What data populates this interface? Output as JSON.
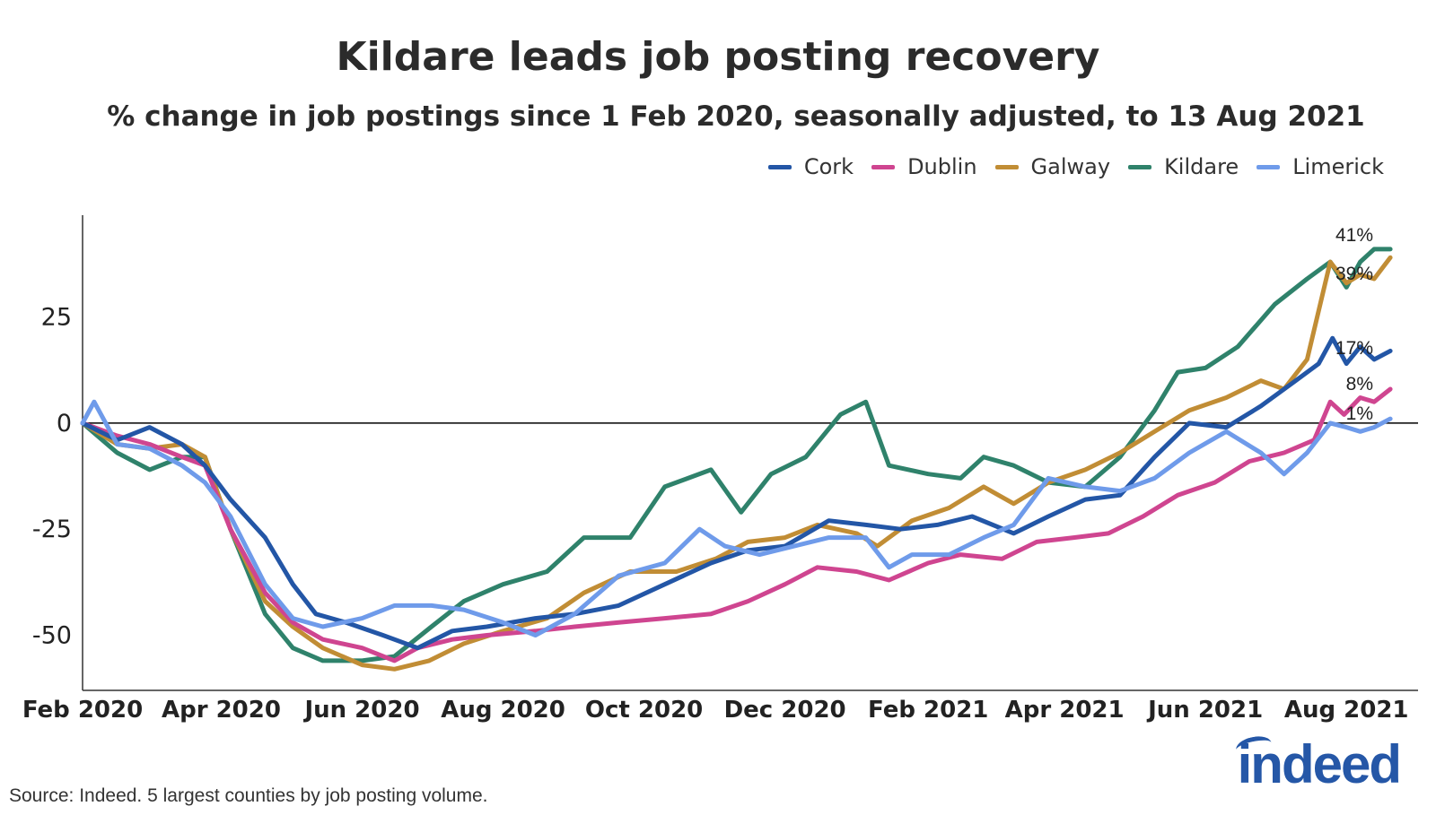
{
  "header": {
    "title": "Kildare leads job posting recovery",
    "subtitle": "% change in job postings since 1 Feb 2020, seasonally adjusted, to 13 Aug 2021"
  },
  "footer": {
    "source": "Source: Indeed. 5 largest counties by job posting volume.",
    "logo_text": "indeed"
  },
  "colors": {
    "Cork": "#2356a6",
    "Dublin": "#cf4590",
    "Galway": "#c18d35",
    "Kildare": "#2f826b",
    "Limerick": "#6f9bea"
  },
  "chart_data": {
    "type": "line",
    "title": "Kildare leads job posting recovery",
    "subtitle": "% change in job postings since 1 Feb 2020, seasonally adjusted, to 13 Aug 2021",
    "xlabel": "",
    "ylabel": "",
    "ylim": [
      -63,
      49
    ],
    "xlim": [
      "2020-02-01",
      "2021-09-01"
    ],
    "y_ticks": [
      25,
      0,
      -25,
      -50
    ],
    "y_tick_labels": [
      "25",
      "0",
      "-25",
      "-50"
    ],
    "x_ticks": [
      "2020-02-01",
      "2020-04-01",
      "2020-06-01",
      "2020-08-01",
      "2020-10-01",
      "2020-12-01",
      "2021-02-01",
      "2021-04-01",
      "2021-06-01",
      "2021-08-01"
    ],
    "x_tick_labels": [
      "Feb 2020",
      "Apr 2020",
      "Jun 2020",
      "Aug 2020",
      "Oct 2020",
      "Dec 2020",
      "Feb 2021",
      "Apr 2021",
      "Jun 2021",
      "Aug 2021"
    ],
    "zero_line": true,
    "grid": false,
    "legend_position": "top-right",
    "series": [
      {
        "name": "Cork",
        "end_label": "17%",
        "points": [
          [
            "2020-02-01",
            0
          ],
          [
            "2020-02-16",
            -4
          ],
          [
            "2020-03-01",
            -1
          ],
          [
            "2020-03-15",
            -5
          ],
          [
            "2020-03-25",
            -10
          ],
          [
            "2020-04-05",
            -18
          ],
          [
            "2020-04-20",
            -27
          ],
          [
            "2020-05-02",
            -38
          ],
          [
            "2020-05-12",
            -45
          ],
          [
            "2020-05-25",
            -47
          ],
          [
            "2020-06-10",
            -50
          ],
          [
            "2020-06-25",
            -53
          ],
          [
            "2020-07-10",
            -49
          ],
          [
            "2020-07-25",
            -48
          ],
          [
            "2020-08-15",
            -46
          ],
          [
            "2020-09-01",
            -45
          ],
          [
            "2020-09-20",
            -43
          ],
          [
            "2020-10-10",
            -38
          ],
          [
            "2020-10-30",
            -33
          ],
          [
            "2020-11-15",
            -30
          ],
          [
            "2020-12-01",
            -29
          ],
          [
            "2020-12-20",
            -23
          ],
          [
            "2021-01-05",
            -24
          ],
          [
            "2021-01-20",
            -25
          ],
          [
            "2021-02-05",
            -24
          ],
          [
            "2021-02-20",
            -22
          ],
          [
            "2021-03-10",
            -26
          ],
          [
            "2021-03-25",
            -22
          ],
          [
            "2021-04-10",
            -18
          ],
          [
            "2021-04-25",
            -17
          ],
          [
            "2021-05-10",
            -8
          ],
          [
            "2021-05-25",
            0
          ],
          [
            "2021-06-10",
            -1
          ],
          [
            "2021-06-25",
            4
          ],
          [
            "2021-07-10",
            10
          ],
          [
            "2021-07-20",
            14
          ],
          [
            "2021-07-26",
            20
          ],
          [
            "2021-08-01",
            14
          ],
          [
            "2021-08-07",
            18
          ],
          [
            "2021-08-13",
            15
          ],
          [
            "2021-08-20",
            17
          ]
        ]
      },
      {
        "name": "Dublin",
        "end_label": "8%",
        "points": [
          [
            "2020-02-01",
            0
          ],
          [
            "2020-02-16",
            -3
          ],
          [
            "2020-03-01",
            -5
          ],
          [
            "2020-03-15",
            -8
          ],
          [
            "2020-03-25",
            -10
          ],
          [
            "2020-04-05",
            -25
          ],
          [
            "2020-04-20",
            -40
          ],
          [
            "2020-05-02",
            -47
          ],
          [
            "2020-05-15",
            -51
          ],
          [
            "2020-06-01",
            -53
          ],
          [
            "2020-06-15",
            -56
          ],
          [
            "2020-06-25",
            -53
          ],
          [
            "2020-07-10",
            -51
          ],
          [
            "2020-07-25",
            -50
          ],
          [
            "2020-08-15",
            -49
          ],
          [
            "2020-09-01",
            -48
          ],
          [
            "2020-09-20",
            -47
          ],
          [
            "2020-10-10",
            -46
          ],
          [
            "2020-10-30",
            -45
          ],
          [
            "2020-11-15",
            -42
          ],
          [
            "2020-12-01",
            -38
          ],
          [
            "2020-12-15",
            -34
          ],
          [
            "2021-01-01",
            -35
          ],
          [
            "2021-01-15",
            -37
          ],
          [
            "2021-02-01",
            -33
          ],
          [
            "2021-02-15",
            -31
          ],
          [
            "2021-03-05",
            -32
          ],
          [
            "2021-03-20",
            -28
          ],
          [
            "2021-04-05",
            -27
          ],
          [
            "2021-04-20",
            -26
          ],
          [
            "2021-05-05",
            -22
          ],
          [
            "2021-05-20",
            -17
          ],
          [
            "2021-06-05",
            -14
          ],
          [
            "2021-06-20",
            -9
          ],
          [
            "2021-07-05",
            -7
          ],
          [
            "2021-07-18",
            -4
          ],
          [
            "2021-07-25",
            5
          ],
          [
            "2021-07-31",
            2
          ],
          [
            "2021-08-07",
            6
          ],
          [
            "2021-08-13",
            5
          ],
          [
            "2021-08-20",
            8
          ]
        ]
      },
      {
        "name": "Galway",
        "end_label": "39%",
        "points": [
          [
            "2020-02-01",
            0
          ],
          [
            "2020-02-16",
            -5
          ],
          [
            "2020-03-01",
            -6
          ],
          [
            "2020-03-15",
            -5
          ],
          [
            "2020-03-25",
            -8
          ],
          [
            "2020-04-05",
            -25
          ],
          [
            "2020-04-20",
            -42
          ],
          [
            "2020-05-02",
            -48
          ],
          [
            "2020-05-15",
            -53
          ],
          [
            "2020-06-01",
            -57
          ],
          [
            "2020-06-15",
            -58
          ],
          [
            "2020-06-30",
            -56
          ],
          [
            "2020-07-15",
            -52
          ],
          [
            "2020-08-01",
            -49
          ],
          [
            "2020-08-20",
            -46
          ],
          [
            "2020-09-05",
            -40
          ],
          [
            "2020-09-25",
            -35
          ],
          [
            "2020-10-15",
            -35
          ],
          [
            "2020-11-01",
            -32
          ],
          [
            "2020-11-15",
            -28
          ],
          [
            "2020-12-01",
            -27
          ],
          [
            "2020-12-15",
            -24
          ],
          [
            "2021-01-01",
            -26
          ],
          [
            "2021-01-10",
            -29
          ],
          [
            "2021-01-25",
            -23
          ],
          [
            "2021-02-10",
            -20
          ],
          [
            "2021-02-25",
            -15
          ],
          [
            "2021-03-10",
            -19
          ],
          [
            "2021-03-25",
            -14
          ],
          [
            "2021-04-10",
            -11
          ],
          [
            "2021-04-25",
            -7
          ],
          [
            "2021-05-10",
            -2
          ],
          [
            "2021-05-25",
            3
          ],
          [
            "2021-06-10",
            6
          ],
          [
            "2021-06-25",
            10
          ],
          [
            "2021-07-05",
            8
          ],
          [
            "2021-07-15",
            15
          ],
          [
            "2021-07-25",
            38
          ],
          [
            "2021-08-01",
            33
          ],
          [
            "2021-08-07",
            35
          ],
          [
            "2021-08-13",
            34
          ],
          [
            "2021-08-20",
            39
          ]
        ]
      },
      {
        "name": "Kildare",
        "end_label": "41%",
        "points": [
          [
            "2020-02-01",
            0
          ],
          [
            "2020-02-16",
            -7
          ],
          [
            "2020-03-01",
            -11
          ],
          [
            "2020-03-15",
            -8
          ],
          [
            "2020-03-25",
            -8
          ],
          [
            "2020-04-05",
            -25
          ],
          [
            "2020-04-20",
            -45
          ],
          [
            "2020-05-02",
            -53
          ],
          [
            "2020-05-15",
            -56
          ],
          [
            "2020-06-01",
            -56
          ],
          [
            "2020-06-15",
            -55
          ],
          [
            "2020-07-01",
            -48
          ],
          [
            "2020-07-15",
            -42
          ],
          [
            "2020-08-01",
            -38
          ],
          [
            "2020-08-20",
            -35
          ],
          [
            "2020-09-05",
            -27
          ],
          [
            "2020-09-25",
            -27
          ],
          [
            "2020-10-10",
            -15
          ],
          [
            "2020-10-30",
            -11
          ],
          [
            "2020-11-12",
            -21
          ],
          [
            "2020-11-25",
            -12
          ],
          [
            "2020-12-10",
            -8
          ],
          [
            "2020-12-25",
            2
          ],
          [
            "2021-01-05",
            5
          ],
          [
            "2021-01-15",
            -10
          ],
          [
            "2021-02-01",
            -12
          ],
          [
            "2021-02-15",
            -13
          ],
          [
            "2021-02-25",
            -8
          ],
          [
            "2021-03-10",
            -10
          ],
          [
            "2021-03-25",
            -14
          ],
          [
            "2021-04-10",
            -15
          ],
          [
            "2021-04-25",
            -8
          ],
          [
            "2021-05-10",
            3
          ],
          [
            "2021-05-20",
            12
          ],
          [
            "2021-06-01",
            13
          ],
          [
            "2021-06-15",
            18
          ],
          [
            "2021-07-01",
            28
          ],
          [
            "2021-07-15",
            34
          ],
          [
            "2021-07-25",
            38
          ],
          [
            "2021-08-01",
            32
          ],
          [
            "2021-08-07",
            38
          ],
          [
            "2021-08-13",
            41
          ],
          [
            "2021-08-20",
            41
          ]
        ]
      },
      {
        "name": "Limerick",
        "end_label": "1%",
        "points": [
          [
            "2020-02-01",
            0
          ],
          [
            "2020-02-06",
            5
          ],
          [
            "2020-02-16",
            -5
          ],
          [
            "2020-03-01",
            -6
          ],
          [
            "2020-03-15",
            -10
          ],
          [
            "2020-03-25",
            -14
          ],
          [
            "2020-04-05",
            -22
          ],
          [
            "2020-04-20",
            -38
          ],
          [
            "2020-05-02",
            -46
          ],
          [
            "2020-05-15",
            -48
          ],
          [
            "2020-06-01",
            -46
          ],
          [
            "2020-06-15",
            -43
          ],
          [
            "2020-07-01",
            -43
          ],
          [
            "2020-07-15",
            -44
          ],
          [
            "2020-08-01",
            -47
          ],
          [
            "2020-08-15",
            -50
          ],
          [
            "2020-09-01",
            -45
          ],
          [
            "2020-09-20",
            -36
          ],
          [
            "2020-10-10",
            -33
          ],
          [
            "2020-10-25",
            -25
          ],
          [
            "2020-11-05",
            -29
          ],
          [
            "2020-11-20",
            -31
          ],
          [
            "2020-12-05",
            -29
          ],
          [
            "2020-12-20",
            -27
          ],
          [
            "2021-01-05",
            -27
          ],
          [
            "2021-01-15",
            -34
          ],
          [
            "2021-01-25",
            -31
          ],
          [
            "2021-02-10",
            -31
          ],
          [
            "2021-02-25",
            -27
          ],
          [
            "2021-03-10",
            -24
          ],
          [
            "2021-03-25",
            -13
          ],
          [
            "2021-04-10",
            -15
          ],
          [
            "2021-04-25",
            -16
          ],
          [
            "2021-05-10",
            -13
          ],
          [
            "2021-05-25",
            -7
          ],
          [
            "2021-06-10",
            -2
          ],
          [
            "2021-06-25",
            -7
          ],
          [
            "2021-07-05",
            -12
          ],
          [
            "2021-07-15",
            -7
          ],
          [
            "2021-07-25",
            0
          ],
          [
            "2021-08-01",
            -1
          ],
          [
            "2021-08-07",
            -2
          ],
          [
            "2021-08-13",
            -1
          ],
          [
            "2021-08-20",
            1
          ]
        ]
      }
    ]
  }
}
